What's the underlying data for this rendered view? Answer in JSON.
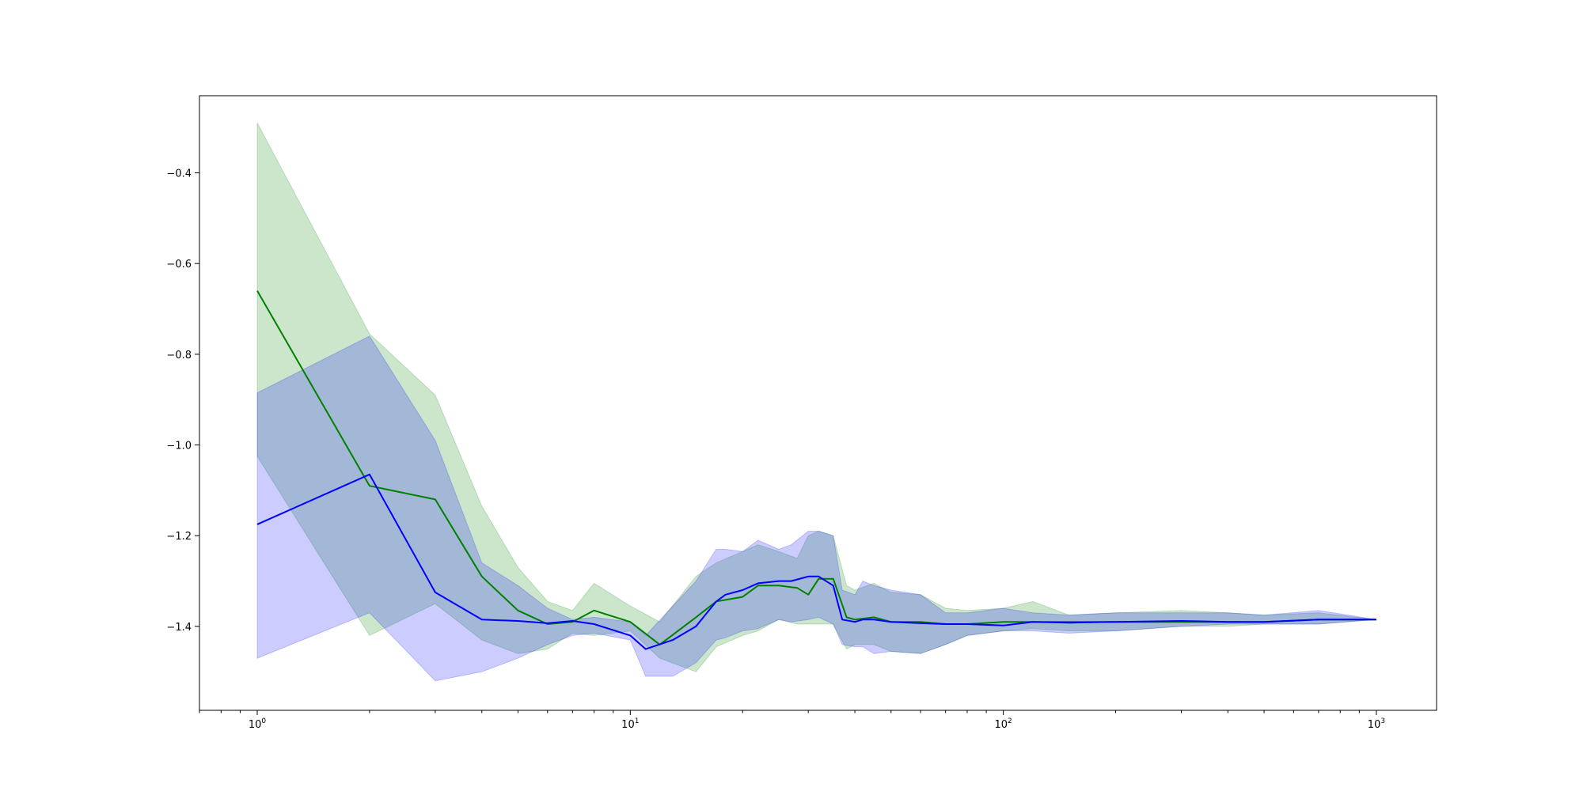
{
  "chart_data": {
    "type": "line",
    "title": "",
    "xlabel": "",
    "ylabel": "",
    "xscale": "log",
    "xlim": [
      0.7,
      1450
    ],
    "ylim": [
      -1.585,
      -0.23
    ],
    "grid": false,
    "legend": "none",
    "x_ticks": [
      {
        "value": 1,
        "base": "10",
        "exp": "0"
      },
      {
        "value": 10,
        "base": "10",
        "exp": "1"
      },
      {
        "value": 100,
        "base": "10",
        "exp": "2"
      },
      {
        "value": 1000,
        "base": "10",
        "exp": "3"
      }
    ],
    "y_ticks": [
      {
        "value": -0.4,
        "label": "−0.4"
      },
      {
        "value": -0.6,
        "label": "−0.6"
      },
      {
        "value": -0.8,
        "label": "−0.8"
      },
      {
        "value": -1.0,
        "label": "−1.0"
      },
      {
        "value": -1.2,
        "label": "−1.2"
      },
      {
        "value": -1.4,
        "label": "−1.4"
      }
    ],
    "series": [
      {
        "color": "#008000",
        "band_color": "#008000",
        "band_opacity": 0.2,
        "x": [
          1,
          2,
          3,
          4,
          5,
          6,
          7,
          8,
          10,
          12,
          15,
          17,
          20,
          22,
          25,
          28,
          30,
          32,
          35,
          38,
          40,
          45,
          50,
          60,
          70,
          80,
          100,
          120,
          150,
          200,
          300,
          400,
          500,
          700,
          1000
        ],
        "y": [
          -0.66,
          -1.09,
          -1.12,
          -1.29,
          -1.365,
          -1.395,
          -1.39,
          -1.365,
          -1.39,
          -1.44,
          -1.38,
          -1.345,
          -1.335,
          -1.31,
          -1.31,
          -1.315,
          -1.33,
          -1.295,
          -1.295,
          -1.38,
          -1.385,
          -1.38,
          -1.39,
          -1.39,
          -1.395,
          -1.395,
          -1.39,
          -1.39,
          -1.39,
          -1.39,
          -1.39,
          -1.39,
          -1.39,
          -1.385,
          -1.385
        ],
        "upper": [
          -0.29,
          -0.755,
          -0.89,
          -1.135,
          -1.27,
          -1.345,
          -1.365,
          -1.305,
          -1.355,
          -1.39,
          -1.29,
          -1.26,
          -1.235,
          -1.22,
          -1.235,
          -1.25,
          -1.2,
          -1.19,
          -1.2,
          -1.31,
          -1.32,
          -1.305,
          -1.325,
          -1.33,
          -1.36,
          -1.365,
          -1.36,
          -1.345,
          -1.375,
          -1.37,
          -1.365,
          -1.37,
          -1.375,
          -1.37,
          -1.385
        ],
        "lower": [
          -1.025,
          -1.42,
          -1.35,
          -1.43,
          -1.46,
          -1.45,
          -1.415,
          -1.42,
          -1.41,
          -1.47,
          -1.5,
          -1.445,
          -1.42,
          -1.41,
          -1.385,
          -1.395,
          -1.395,
          -1.395,
          -1.395,
          -1.45,
          -1.44,
          -1.44,
          -1.455,
          -1.46,
          -1.44,
          -1.42,
          -1.41,
          -1.405,
          -1.41,
          -1.41,
          -1.4,
          -1.4,
          -1.395,
          -1.395,
          -1.385
        ]
      },
      {
        "color": "#0000ff",
        "band_color": "#0000ff",
        "band_opacity": 0.2,
        "x": [
          1,
          2,
          3,
          4,
          5,
          6,
          7,
          8,
          10,
          11,
          13,
          15,
          17,
          18,
          20,
          22,
          25,
          27,
          30,
          32,
          35,
          37,
          40,
          42,
          45,
          50,
          60,
          70,
          80,
          100,
          120,
          150,
          200,
          300,
          400,
          500,
          700,
          1000
        ],
        "y": [
          -1.175,
          -1.065,
          -1.325,
          -1.385,
          -1.388,
          -1.393,
          -1.388,
          -1.395,
          -1.42,
          -1.45,
          -1.43,
          -1.4,
          -1.345,
          -1.33,
          -1.32,
          -1.305,
          -1.3,
          -1.3,
          -1.29,
          -1.29,
          -1.31,
          -1.385,
          -1.39,
          -1.385,
          -1.385,
          -1.39,
          -1.393,
          -1.395,
          -1.395,
          -1.398,
          -1.39,
          -1.392,
          -1.39,
          -1.388,
          -1.39,
          -1.39,
          -1.385,
          -1.385
        ],
        "upper": [
          -0.885,
          -0.76,
          -0.99,
          -1.26,
          -1.31,
          -1.36,
          -1.385,
          -1.38,
          -1.39,
          -1.42,
          -1.355,
          -1.3,
          -1.23,
          -1.23,
          -1.235,
          -1.21,
          -1.23,
          -1.22,
          -1.19,
          -1.19,
          -1.2,
          -1.32,
          -1.33,
          -1.3,
          -1.31,
          -1.32,
          -1.33,
          -1.37,
          -1.37,
          -1.36,
          -1.37,
          -1.375,
          -1.37,
          -1.37,
          -1.37,
          -1.375,
          -1.365,
          -1.385
        ],
        "lower": [
          -1.47,
          -1.37,
          -1.52,
          -1.5,
          -1.47,
          -1.44,
          -1.42,
          -1.415,
          -1.43,
          -1.51,
          -1.51,
          -1.48,
          -1.43,
          -1.425,
          -1.41,
          -1.405,
          -1.385,
          -1.39,
          -1.385,
          -1.38,
          -1.395,
          -1.44,
          -1.445,
          -1.445,
          -1.46,
          -1.455,
          -1.46,
          -1.44,
          -1.42,
          -1.41,
          -1.41,
          -1.415,
          -1.41,
          -1.4,
          -1.395,
          -1.395,
          -1.395,
          -1.385
        ]
      }
    ]
  }
}
